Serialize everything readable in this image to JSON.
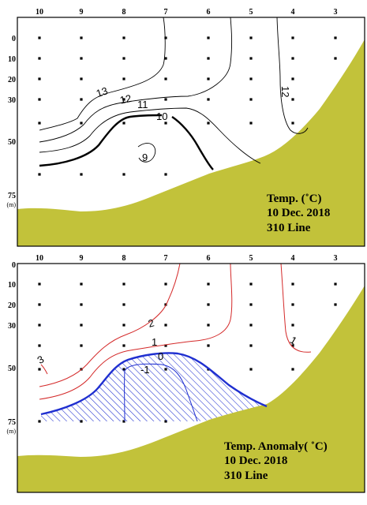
{
  "colors": {
    "land": "#c2c23a",
    "frame": "#000000",
    "temp_contour": "#000000",
    "anomaly_contour": "#d42a2a",
    "zero_anomaly": "#1f2fd0",
    "hatch": "#1f2fd0"
  },
  "chart_data": [
    {
      "type": "contour",
      "station_ticks": [
        "10",
        "9",
        "8",
        "7",
        "6",
        "5",
        "4",
        "3"
      ],
      "depth_ticks": [
        "0",
        "10",
        "20",
        "30",
        "50",
        "75"
      ],
      "depth_unit": "(m)",
      "contours": [
        {
          "level": "13",
          "label": "13"
        },
        {
          "level": "12",
          "label": "12"
        },
        {
          "level": "11",
          "label": "11"
        },
        {
          "level": "10",
          "label": "10",
          "bold": true
        },
        {
          "level": "9",
          "label": "9"
        },
        {
          "level": "12",
          "label": "12",
          "note": "right"
        }
      ],
      "caption": [
        "Temp. (˚C)",
        "10 Dec. 2018",
        "310 Line"
      ]
    },
    {
      "type": "contour",
      "station_ticks": [
        "10",
        "9",
        "8",
        "7",
        "6",
        "5",
        "4",
        "3"
      ],
      "depth_ticks": [
        "0",
        "10",
        "20",
        "30",
        "50",
        "75"
      ],
      "depth_unit": "(m)",
      "contours": [
        {
          "level": "3",
          "label": "3"
        },
        {
          "level": "2",
          "label": "2"
        },
        {
          "level": "1",
          "label": "1"
        },
        {
          "level": "0",
          "label": "0",
          "bold": true
        },
        {
          "level": "-1",
          "label": "-1"
        },
        {
          "level": "1",
          "label": "1",
          "note": "right"
        }
      ],
      "hatched_region": "anomaly < 0",
      "caption": [
        "Temp. Anomaly( ˚C)",
        "10 Dec. 2018",
        "310 Line"
      ]
    }
  ]
}
